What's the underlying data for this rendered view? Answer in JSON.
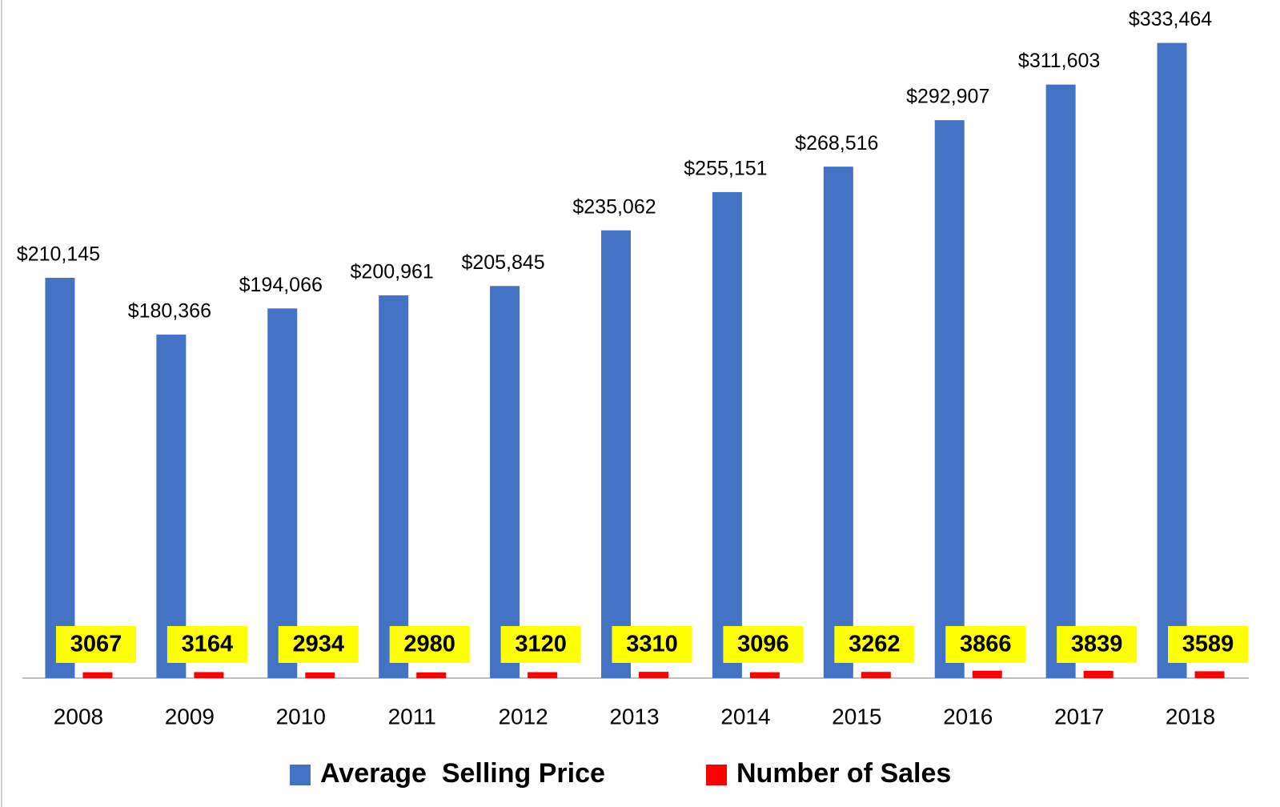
{
  "chart_data": {
    "type": "bar",
    "categories": [
      "2008",
      "2009",
      "2010",
      "2011",
      "2012",
      "2013",
      "2014",
      "2015",
      "2016",
      "2017",
      "2018"
    ],
    "series": [
      {
        "name": "Average  Selling Price",
        "color": "#4472c4",
        "values": [
          210145,
          180366,
          194066,
          200961,
          205845,
          235062,
          255151,
          268516,
          292907,
          311603,
          333464
        ],
        "value_labels": [
          "$210,145",
          "$180,366",
          "$194,066",
          "$200,961",
          "$205,845",
          "$235,062",
          "$255,151",
          "$268,516",
          "$292,907",
          "$311,603",
          "$333,464"
        ]
      },
      {
        "name": "Number of Sales",
        "color": "#ff0000",
        "values": [
          3067,
          3164,
          2934,
          2980,
          3120,
          3310,
          3096,
          3262,
          3866,
          3839,
          3589
        ]
      }
    ],
    "ylim": [
      0,
      356000
    ]
  }
}
